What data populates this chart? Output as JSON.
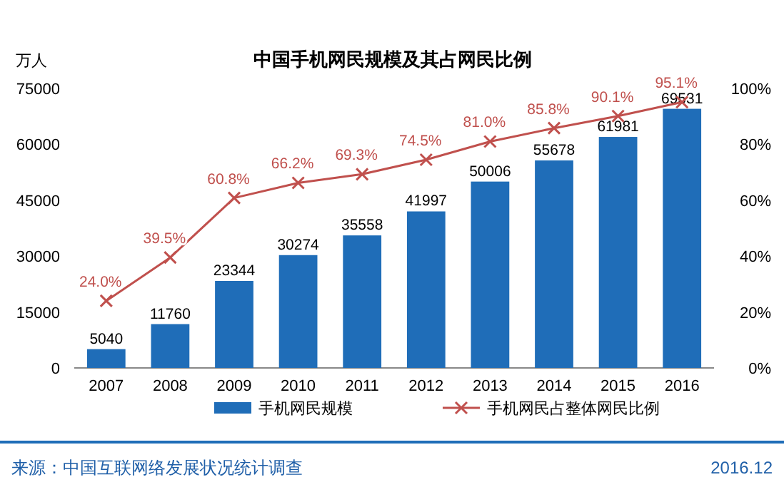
{
  "chart_data": {
    "type": "bar",
    "title": "中国手机网民规模及其占网民比例",
    "ylabel": "万人",
    "categories": [
      "2007",
      "2008",
      "2009",
      "2010",
      "2011",
      "2012",
      "2013",
      "2014",
      "2015",
      "2016"
    ],
    "series": [
      {
        "name": "手机网民规模",
        "color": "#1f6db8",
        "values": [
          5040,
          11760,
          23344,
          30274,
          35558,
          41997,
          50006,
          55678,
          61981,
          69531
        ],
        "value_labels": [
          "5040",
          "11760",
          "23344",
          "30274",
          "35558",
          "41997",
          "50006",
          "55678",
          "61981",
          "69531"
        ]
      },
      {
        "name": "手机网民占整体网民比例",
        "type": "line",
        "axis": "y2",
        "color": "#c0504d",
        "marker": "cross",
        "line_style": "solid",
        "values": [
          24.0,
          39.5,
          60.8,
          66.2,
          69.3,
          74.5,
          81.0,
          85.8,
          90.1,
          95.1
        ],
        "value_labels": [
          "24.0%",
          "39.5%",
          "60.8%",
          "66.2%",
          "69.3%",
          "74.5%",
          "81.0%",
          "85.8%",
          "90.1%",
          "95.1%"
        ]
      }
    ],
    "ylim": [
      0,
      75000
    ],
    "yticks": [
      0,
      15000,
      30000,
      45000,
      60000,
      75000
    ],
    "y2lim": [
      0,
      100
    ],
    "y2ticks": [
      {
        "value": 0,
        "label": "0%"
      },
      {
        "value": 20,
        "label": "20%"
      },
      {
        "value": 40,
        "label": "40%"
      },
      {
        "value": 60,
        "label": "60%"
      },
      {
        "value": 80,
        "label": "80%"
      },
      {
        "value": 100,
        "label": "100%"
      }
    ],
    "grid": false,
    "legend": "bottom",
    "annotations": [
      "来源：中国互联网络发展状况统计调查",
      "2016.12"
    ]
  }
}
